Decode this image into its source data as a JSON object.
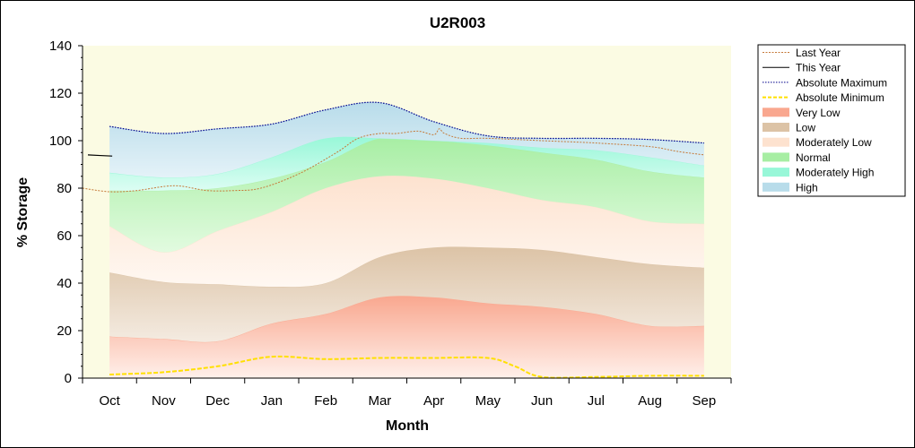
{
  "chart_data": {
    "type": "area",
    "title": "U2R003",
    "xlabel": "Month",
    "ylabel": "% Storage",
    "ylim": [
      0,
      140
    ],
    "yticks": [
      0,
      20,
      40,
      60,
      80,
      100,
      120,
      140
    ],
    "categories": [
      "Oct",
      "Nov",
      "Dec",
      "Jan",
      "Feb",
      "Mar",
      "Apr",
      "May",
      "Jun",
      "Jul",
      "Aug",
      "Sep"
    ],
    "legend_position": "right",
    "colors": {
      "plot_bg": "#fbfbe3",
      "very_low": "#f9a78f",
      "low": "#dcc3a6",
      "moderately_low": "#fde2cf",
      "normal": "#a7eea3",
      "moderately_high": "#98f7d8",
      "high": "#b8dcea",
      "last_year": "#c57a3a",
      "this_year": "#000000",
      "abs_max": "#00008b",
      "abs_min": "#ffe000"
    },
    "series": [
      {
        "name": "Last Year",
        "key": "last_year",
        "style": "dashed-line",
        "values": [
          [
            -0.5,
            80
          ],
          [
            0,
            78.5
          ],
          [
            0.5,
            79
          ],
          [
            1.2,
            81
          ],
          [
            1.8,
            79
          ],
          [
            2.3,
            79
          ],
          [
            2.8,
            80
          ],
          [
            3.5,
            86
          ],
          [
            4.2,
            95
          ],
          [
            4.6,
            101
          ],
          [
            5,
            103
          ],
          [
            5.3,
            103
          ],
          [
            5.7,
            104
          ],
          [
            6.0,
            102.5
          ],
          [
            6.1,
            105
          ],
          [
            6.2,
            103
          ],
          [
            6.5,
            101
          ],
          [
            7,
            101
          ],
          [
            8,
            100
          ],
          [
            9,
            99
          ],
          [
            10,
            97.5
          ],
          [
            10.5,
            95.5
          ],
          [
            11,
            94
          ]
        ]
      },
      {
        "name": "This Year",
        "key": "this_year",
        "style": "solid-line",
        "values": [
          [
            -0.4,
            94
          ],
          [
            0.05,
            93.5
          ]
        ]
      },
      {
        "name": "Absolute Maximum",
        "key": "abs_max",
        "style": "dotted-line",
        "values": [
          [
            0,
            106
          ],
          [
            1,
            103
          ],
          [
            2,
            105
          ],
          [
            3,
            107
          ],
          [
            4,
            113
          ],
          [
            5,
            116
          ],
          [
            6,
            108
          ],
          [
            7,
            102
          ],
          [
            8,
            101
          ],
          [
            9,
            101
          ],
          [
            10,
            100.5
          ],
          [
            11,
            99
          ]
        ]
      },
      {
        "name": "Absolute Minimum",
        "key": "abs_min",
        "style": "dashed-line",
        "values": [
          [
            0,
            1.5
          ],
          [
            1,
            2.5
          ],
          [
            2,
            5
          ],
          [
            3,
            9
          ],
          [
            4,
            8
          ],
          [
            5,
            8.5
          ],
          [
            6,
            8.5
          ],
          [
            7,
            8.5
          ],
          [
            7.5,
            5
          ],
          [
            8,
            0.5
          ],
          [
            9,
            0.5
          ],
          [
            10,
            1
          ],
          [
            11,
            1
          ]
        ]
      },
      {
        "name": "Very Low",
        "key": "very_low",
        "style": "band",
        "values": [
          [
            0,
            17.5
          ],
          [
            1,
            16.5
          ],
          [
            2,
            15.5
          ],
          [
            3,
            23
          ],
          [
            4,
            27
          ],
          [
            5,
            34
          ],
          [
            6,
            34
          ],
          [
            7,
            31.5
          ],
          [
            8,
            30
          ],
          [
            9,
            27
          ],
          [
            10,
            22
          ],
          [
            11,
            22
          ]
        ]
      },
      {
        "name": "Low",
        "key": "low",
        "style": "band",
        "values": [
          [
            0,
            44.5
          ],
          [
            1,
            40.5
          ],
          [
            2,
            39.5
          ],
          [
            3,
            38.5
          ],
          [
            4,
            40
          ],
          [
            5,
            51
          ],
          [
            6,
            55
          ],
          [
            7,
            55
          ],
          [
            8,
            54
          ],
          [
            9,
            51
          ],
          [
            10,
            48
          ],
          [
            11,
            46.5
          ]
        ]
      },
      {
        "name": "Moderately Low",
        "key": "moderately_low",
        "style": "band",
        "values": [
          [
            0,
            64
          ],
          [
            1,
            53
          ],
          [
            2,
            62
          ],
          [
            3,
            70
          ],
          [
            4,
            80
          ],
          [
            5,
            85
          ],
          [
            6,
            84
          ],
          [
            7,
            80
          ],
          [
            8,
            75
          ],
          [
            9,
            72
          ],
          [
            10,
            66
          ],
          [
            11,
            65
          ]
        ]
      },
      {
        "name": "Normal",
        "key": "normal",
        "style": "band",
        "values": [
          [
            0,
            79
          ],
          [
            1,
            79
          ],
          [
            2,
            80
          ],
          [
            3,
            84
          ],
          [
            4,
            91
          ],
          [
            5,
            101
          ],
          [
            6,
            100
          ],
          [
            7,
            98
          ],
          [
            8,
            95
          ],
          [
            9,
            92
          ],
          [
            10,
            87
          ],
          [
            11,
            84.5
          ]
        ]
      },
      {
        "name": "Moderately High",
        "key": "moderately_high",
        "style": "band",
        "values": [
          [
            0,
            86.5
          ],
          [
            1,
            84.5
          ],
          [
            2,
            86
          ],
          [
            3,
            93
          ],
          [
            4,
            101
          ],
          [
            5,
            101
          ],
          [
            6,
            100
          ],
          [
            7,
            99
          ],
          [
            8,
            97
          ],
          [
            9,
            96
          ],
          [
            10,
            93
          ],
          [
            11,
            89.5
          ]
        ]
      },
      {
        "name": "High",
        "key": "high",
        "style": "band",
        "values": [
          [
            0,
            106
          ],
          [
            1,
            103
          ],
          [
            2,
            105
          ],
          [
            3,
            107
          ],
          [
            4,
            113
          ],
          [
            5,
            116
          ],
          [
            6,
            108
          ],
          [
            7,
            102
          ],
          [
            8,
            101
          ],
          [
            9,
            101
          ],
          [
            10,
            100.5
          ],
          [
            11,
            99
          ]
        ]
      }
    ]
  }
}
